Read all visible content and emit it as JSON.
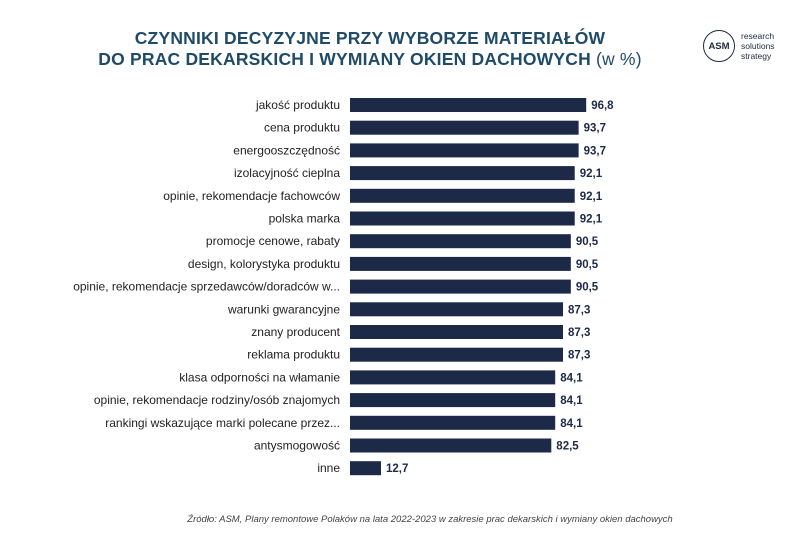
{
  "title": {
    "line1": "CZYNNIKI DECYZYJNE PRZY WYBORZE MATERIAŁÓW",
    "line2": "DO PRAC DEKARSKICH I WYMIANY OKIEN DACHOWYCH",
    "unit": "(w %)"
  },
  "logo": {
    "mark": "ASM",
    "line1": "research",
    "line2": "solutions",
    "line3": "strategy"
  },
  "source": "Źródło: ASM, Plany remontowe Polaków na lata 2022-2023 w zakresie prac dekarskich i wymiany okien dachowych",
  "colors": {
    "bar": "#1c2a48",
    "title": "#1f4a68"
  },
  "chart_data": {
    "type": "bar",
    "orientation": "horizontal",
    "categories": [
      "jakość produktu",
      "cena produktu",
      "energooszczędność",
      "izolacyjność cieplna",
      "opinie, rekomendacje fachowców",
      "polska marka",
      "promocje cenowe, rabaty",
      "design, kolorystyka produktu",
      "opinie, rekomendacje sprzedawców/doradców w...",
      "warunki gwarancyjne",
      "znany producent",
      "reklama produktu",
      "klasa odporności na włamanie",
      "opinie, rekomendacje rodziny/osób znajomych",
      "rankingi wskazujące marki polecane przez...",
      "antysmogowość",
      "inne"
    ],
    "values": [
      96.8,
      93.7,
      93.7,
      92.1,
      92.1,
      92.1,
      90.5,
      90.5,
      90.5,
      87.3,
      87.3,
      87.3,
      84.1,
      84.1,
      84.1,
      82.5,
      12.7
    ],
    "value_labels": [
      "96,8",
      "93,7",
      "93,7",
      "92,1",
      "92,1",
      "92,1",
      "90,5",
      "90,5",
      "90,5",
      "87,3",
      "87,3",
      "87,3",
      "84,1",
      "84,1",
      "84,1",
      "82,5",
      "12,7"
    ],
    "xlim": [
      0,
      100
    ],
    "grid": false,
    "legend": "none"
  }
}
